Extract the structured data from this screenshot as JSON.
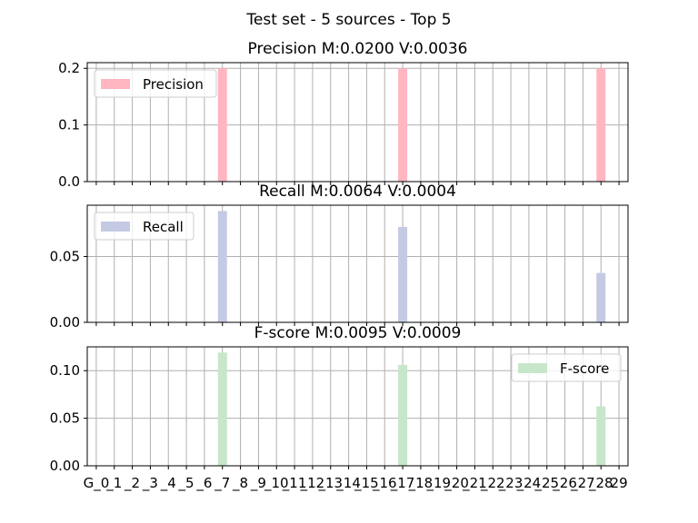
{
  "figure": {
    "suptitle": "Test set - 5 sources - Top 5"
  },
  "chart_data": [
    {
      "type": "bar",
      "title": "Precision M:0.0200 V:0.0036",
      "series": [
        {
          "name": "Precision",
          "color": "#ffb6c1"
        }
      ],
      "legend": "upper-left",
      "grid": true,
      "ylim": [
        0,
        0.21
      ],
      "yticks": [
        "0.0",
        "0.1",
        "0.2"
      ],
      "ytick_values": [
        0,
        0.1,
        0.2
      ],
      "bars": [
        {
          "index": 7,
          "value": 0.2
        },
        {
          "index": 17,
          "value": 0.2
        },
        {
          "index": 28,
          "value": 0.2
        }
      ]
    },
    {
      "type": "bar",
      "title": "Recall M:0.0064 V:0.0004",
      "series": [
        {
          "name": "Recall",
          "color": "#c5cae4"
        }
      ],
      "legend": "upper-left",
      "grid": true,
      "ylim": [
        0,
        0.089
      ],
      "yticks": [
        "0.00",
        "0.05"
      ],
      "ytick_values": [
        0,
        0.05
      ],
      "bars": [
        {
          "index": 7,
          "value": 0.0846
        },
        {
          "index": 17,
          "value": 0.0725
        },
        {
          "index": 28,
          "value": 0.0375
        }
      ]
    },
    {
      "type": "bar",
      "title": "F-score M:0.0095 V:0.0009",
      "series": [
        {
          "name": "F-score",
          "color": "#c8e6c9"
        }
      ],
      "legend": "upper-right",
      "grid": true,
      "ylim": [
        0,
        0.125
      ],
      "yticks": [
        "0.00",
        "0.05",
        "0.10"
      ],
      "ytick_values": [
        0,
        0.05,
        0.1
      ],
      "bars": [
        {
          "index": 7,
          "value": 0.119
        },
        {
          "index": 17,
          "value": 0.106
        },
        {
          "index": 28,
          "value": 0.0625
        }
      ]
    }
  ],
  "x_axis": {
    "categories": [
      "G_0",
      "G_1",
      "G_2",
      "G_3",
      "G_4",
      "G_5",
      "G_6",
      "G_7",
      "G_8",
      "G_9",
      "G_10",
      "G_11",
      "G_12",
      "G_13",
      "G_14",
      "G_15",
      "G_16",
      "G_17",
      "G_18",
      "G_19",
      "G_20",
      "G_21",
      "G_22",
      "G_23",
      "G_24",
      "G_25",
      "G_26",
      "G_27",
      "G_28",
      "G_29"
    ],
    "rendered_labels": [
      "G_0",
      "_1",
      "_2",
      "_3",
      "_4",
      "_5",
      "_6",
      "_7",
      "_8",
      "_9",
      "_10",
      "_11",
      "_12",
      "_13",
      "_14",
      "_15",
      "_16",
      "_17",
      "_18",
      "_19",
      "_20",
      "_21",
      "_22",
      "_23",
      "_24",
      "_25",
      "_26",
      "_27",
      "_28",
      "29"
    ]
  }
}
